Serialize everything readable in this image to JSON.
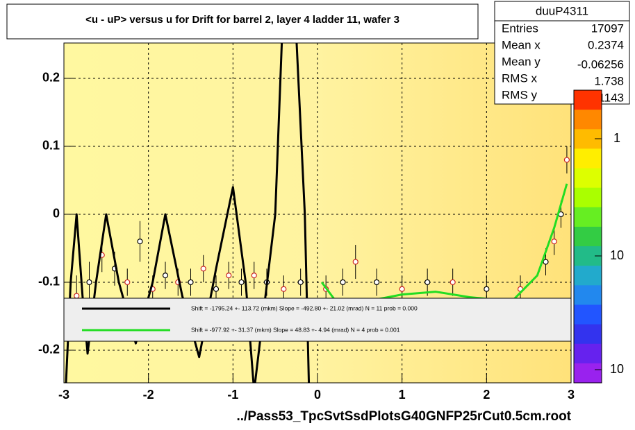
{
  "chart_data": {
    "type": "profile",
    "title": "<u - uP>       versus   u for Drift for barrel 2, layer 4 ladder 11, wafer 3",
    "x_label": "../Pass53_TpcSvtSsdPlotsG40GNFP25rCut0.5cm.root",
    "xlim": [
      -3,
      3
    ],
    "xticks": [
      -3,
      -2,
      -1,
      0,
      1,
      2,
      3
    ],
    "ylim": [
      -0.248,
      0.252
    ],
    "yticks": [
      -0.2,
      -0.1,
      0,
      0.1,
      0.2
    ],
    "grid": true,
    "stats": {
      "name": "duuP4311",
      "rows": [
        {
          "label": "Entries",
          "value": 17097
        },
        {
          "label": "Mean x",
          "value": 0.2374
        },
        {
          "label": "Mean y",
          "value": -0.06256
        },
        {
          "label": "RMS x",
          "value": 1.738
        },
        {
          "label": "RMS y",
          "value": 0.1143
        }
      ]
    },
    "palette": {
      "colors": [
        "#ff3300",
        "#ff8800",
        "#ffbb00",
        "#ffee00",
        "#ddff00",
        "#aaff00",
        "#66ee22",
        "#33cc44",
        "#22bb88",
        "#22aacc",
        "#2288ee",
        "#2255ff",
        "#3333ee",
        "#6622ee",
        "#9922ee"
      ],
      "labels": [
        "1",
        "10",
        "10"
      ]
    },
    "points": {
      "color": "#cc2222",
      "x": [
        -2.85,
        -2.7,
        -2.55,
        -2.4,
        -2.25,
        -2.1,
        -1.95,
        -1.8,
        -1.65,
        -1.5,
        -1.35,
        -1.2,
        -1.05,
        -0.9,
        -0.75,
        -0.6,
        -0.4,
        -0.2,
        0.1,
        0.3,
        0.45,
        0.7,
        1.0,
        1.3,
        1.6,
        2.0,
        2.4,
        2.7,
        2.8,
        2.88,
        2.95
      ],
      "values": [
        -0.12,
        -0.1,
        -0.06,
        -0.08,
        -0.1,
        -0.04,
        -0.11,
        -0.09,
        -0.1,
        -0.1,
        -0.08,
        -0.11,
        -0.09,
        -0.1,
        -0.09,
        -0.1,
        -0.11,
        -0.1,
        -0.11,
        -0.1,
        -0.07,
        -0.1,
        -0.11,
        -0.1,
        -0.1,
        -0.11,
        -0.11,
        -0.07,
        -0.04,
        0.0,
        0.08
      ],
      "errors": [
        0.03,
        0.03,
        0.025,
        0.025,
        0.02,
        0.03,
        0.02,
        0.02,
        0.02,
        0.02,
        0.02,
        0.02,
        0.02,
        0.02,
        0.02,
        0.02,
        0.02,
        0.02,
        0.02,
        0.02,
        0.025,
        0.02,
        0.02,
        0.02,
        0.02,
        0.02,
        0.02,
        0.02,
        0.02,
        0.02,
        0.02
      ]
    },
    "series": [
      {
        "name": "Shift = -1795.24 +- 113.72 (mkm) Slope =  -492.80 +- 21.02 (mrad)  N = 11 prob = 0.000",
        "color": "#000000",
        "x": [
          -2.98,
          -2.92,
          -2.85,
          -2.78,
          -2.72,
          -2.62,
          -2.5,
          -2.35,
          -2.15,
          -1.95,
          -1.8,
          -1.6,
          -1.4,
          -1.2,
          -1.0,
          -0.85,
          -0.75,
          -0.5,
          -0.42,
          -0.25,
          -0.15,
          -0.1
        ],
        "values": [
          -0.26,
          -0.1,
          0.0,
          -0.12,
          -0.205,
          -0.1,
          0.0,
          -0.1,
          -0.19,
          -0.1,
          0.0,
          -0.12,
          -0.21,
          -0.08,
          0.04,
          -0.1,
          -0.26,
          0.0,
          0.26,
          0.26,
          0.0,
          -0.26
        ]
      },
      {
        "name": "Shift =  -977.92 +- 31.37 (mkm) Slope =    48.83 +- 4.94 (mrad)  N = 4 prob = 0.001",
        "color": "#22dd22",
        "x": [
          0.05,
          0.2,
          0.5,
          1.0,
          1.4,
          1.8,
          2.3,
          2.6,
          2.8,
          2.95
        ],
        "values": [
          -0.1,
          -0.125,
          -0.13,
          -0.118,
          -0.114,
          -0.122,
          -0.128,
          -0.09,
          -0.02,
          0.045
        ]
      }
    ]
  }
}
